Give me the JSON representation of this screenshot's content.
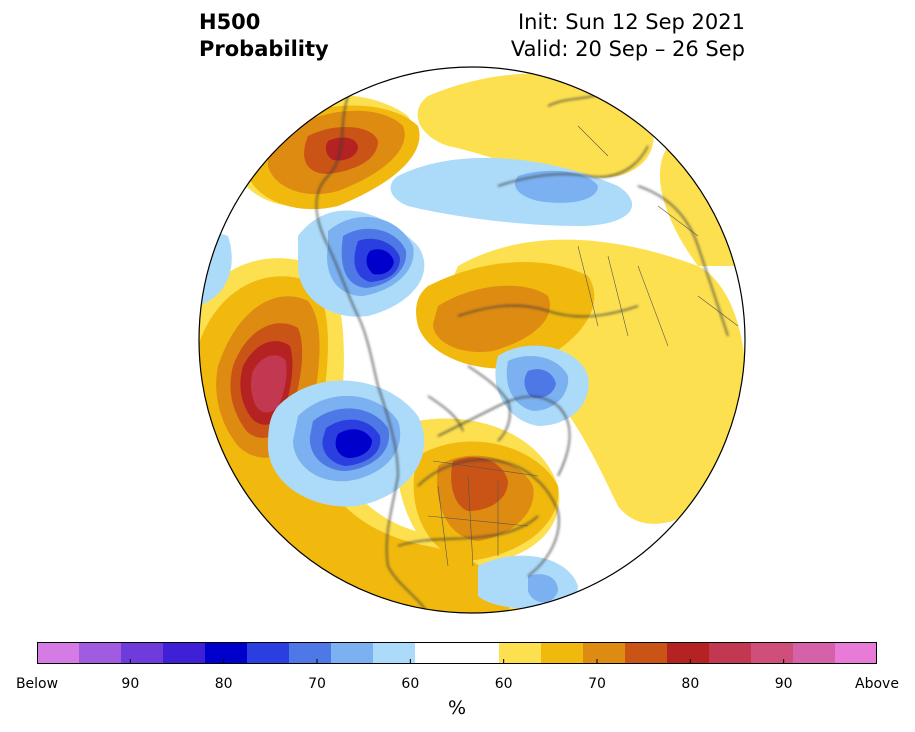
{
  "title": {
    "left_line1": "H500",
    "left_line2": "Probability",
    "right_line1": "Init: Sun 12 Sep 2021",
    "right_line2": "Valid: 20 Sep – 26 Sep"
  },
  "map": {
    "projection": "north-polar-stereographic",
    "variable": "500 hPa height tercile probability"
  },
  "colorbar": {
    "unit": "%",
    "colors": [
      "#d57be6",
      "#a15be0",
      "#6f3cdc",
      "#4020d6",
      "#0000cd",
      "#2b3fe0",
      "#4d78e6",
      "#7bb1f0",
      "#acdaf9",
      "#ffffff",
      "#ffffff",
      "#fde050",
      "#f1b90e",
      "#de8b12",
      "#c95416",
      "#b42222",
      "#c23850",
      "#cf4f7a",
      "#d562a8",
      "#e87ad8"
    ],
    "tick_labels": [
      "Below",
      "90",
      "80",
      "70",
      "60",
      "60",
      "70",
      "80",
      "90",
      "Above"
    ]
  }
}
